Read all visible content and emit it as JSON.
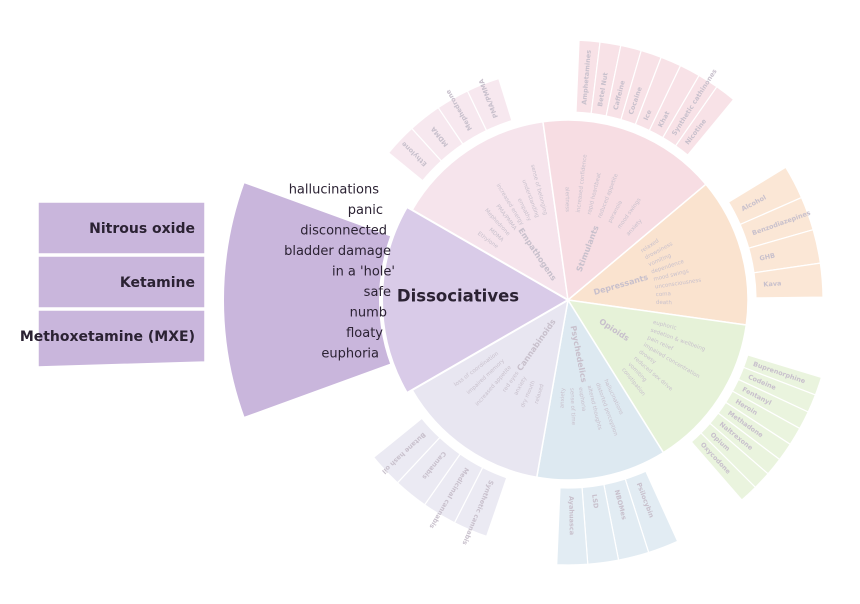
{
  "center_label": "Dissociatives",
  "highlight": {
    "category": "Dissociatives",
    "color": "#c9b6dc",
    "color_inner": "#d9cbe8",
    "effects": [
      "hallucinations",
      "panic",
      "disconnected",
      "bladder damage",
      "in a 'hole'",
      "safe",
      "numb",
      "floaty",
      "euphoria"
    ],
    "drugs": [
      "Nitrous oxide",
      "Ketamine",
      "Methoxetamine (MXE)"
    ]
  },
  "categories": [
    {
      "name": "Empathogens",
      "color": "#f6e4ec",
      "effects": [
        "Ethylone",
        "MDMA",
        "Mephedrone",
        "PMA/PMMA",
        "increased energy",
        "empathy",
        "understanding",
        "sense of belonging"
      ],
      "drugs": [
        "Ethylone",
        "MDMA",
        "Mephedrone",
        "PMA/PMMA"
      ]
    },
    {
      "name": "Stimulants",
      "color": "#f7dde3",
      "effects": [
        "alertness",
        "increased confidence",
        "rapid heartbeat",
        "reduced appetite",
        "paranoia",
        "mood swings",
        "anxiety"
      ],
      "drugs": [
        "Amphetamines",
        "Betel Nut",
        "Caffeine",
        "Cocaine",
        "Ice",
        "Khat",
        "Synthetic cathinones",
        "Nicotine"
      ]
    },
    {
      "name": "Depressants",
      "color": "#fae3cf",
      "effects": [
        "relaxed",
        "drowsiness",
        "vomiting",
        "dependence",
        "mood swings",
        "unconsciousness",
        "coma",
        "death"
      ],
      "drugs": [
        "Alcohol",
        "Benzodiazepines",
        "GHB",
        "Kava"
      ]
    },
    {
      "name": "Opioids",
      "color": "#e6f2d8",
      "effects": [
        "euphoric",
        "sedation & wellbeing",
        "pain relief",
        "impaired concentration",
        "drowsy",
        "reduced sex drive",
        "vomiting",
        "constipation"
      ],
      "drugs": [
        "Buprenorphine",
        "Codeine",
        "Fentanyl",
        "Heroin",
        "Methadone",
        "Naltrexone",
        "Opium",
        "Oxycodone"
      ]
    },
    {
      "name": "Psychedelics",
      "color": "#dde9f1",
      "effects": [
        "hallucinations",
        "distorted perception",
        "altered thoughts",
        "euphoria",
        "sense of time",
        "anxiety"
      ],
      "drugs": [
        "Psilocybin",
        "NBOMes",
        "LSD",
        "Ayahuasca"
      ]
    },
    {
      "name": "Cannabinoids",
      "color": "#e8e6f1",
      "effects": [
        "relaxed",
        "dry mouth",
        "anxiety",
        "red eyes",
        "increased appetite",
        "impaired memory",
        "loss of coordination"
      ],
      "drugs": [
        "Synthetic cannabis",
        "Medicinal cannabis",
        "Cannabis",
        "Butane hash oil"
      ]
    }
  ],
  "colors": {
    "faint_text": "#c8c0cc",
    "dark_text": "#2b2233",
    "divider": "#ffffff"
  }
}
